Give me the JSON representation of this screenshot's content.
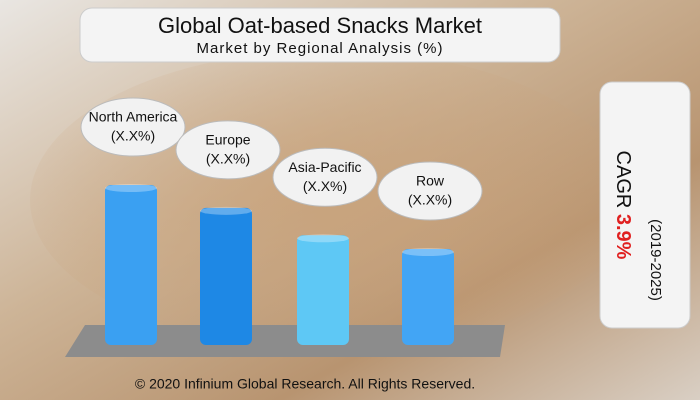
{
  "chart_data": {
    "type": "bar",
    "title": "Global Oat-based Snacks Market",
    "subtitle": "Market by Regional Analysis (%)",
    "categories": [
      "North America",
      "Europe",
      "Asia-Pacific",
      "Row"
    ],
    "values": [
      35,
      30,
      24,
      21
    ],
    "value_labels": [
      "(X.X%)",
      "(X.X%)",
      "(X.X%)",
      "(X.X%)"
    ],
    "colors": [
      "#3aa0f2",
      "#1e88e5",
      "#5ec8f5",
      "#42a5f5"
    ]
  },
  "cagr": {
    "label": "CAGR",
    "value": "3.9%",
    "period": "(2019-2025)"
  },
  "footer": "© 2020 Infinium Global Research. All Rights Reserved."
}
